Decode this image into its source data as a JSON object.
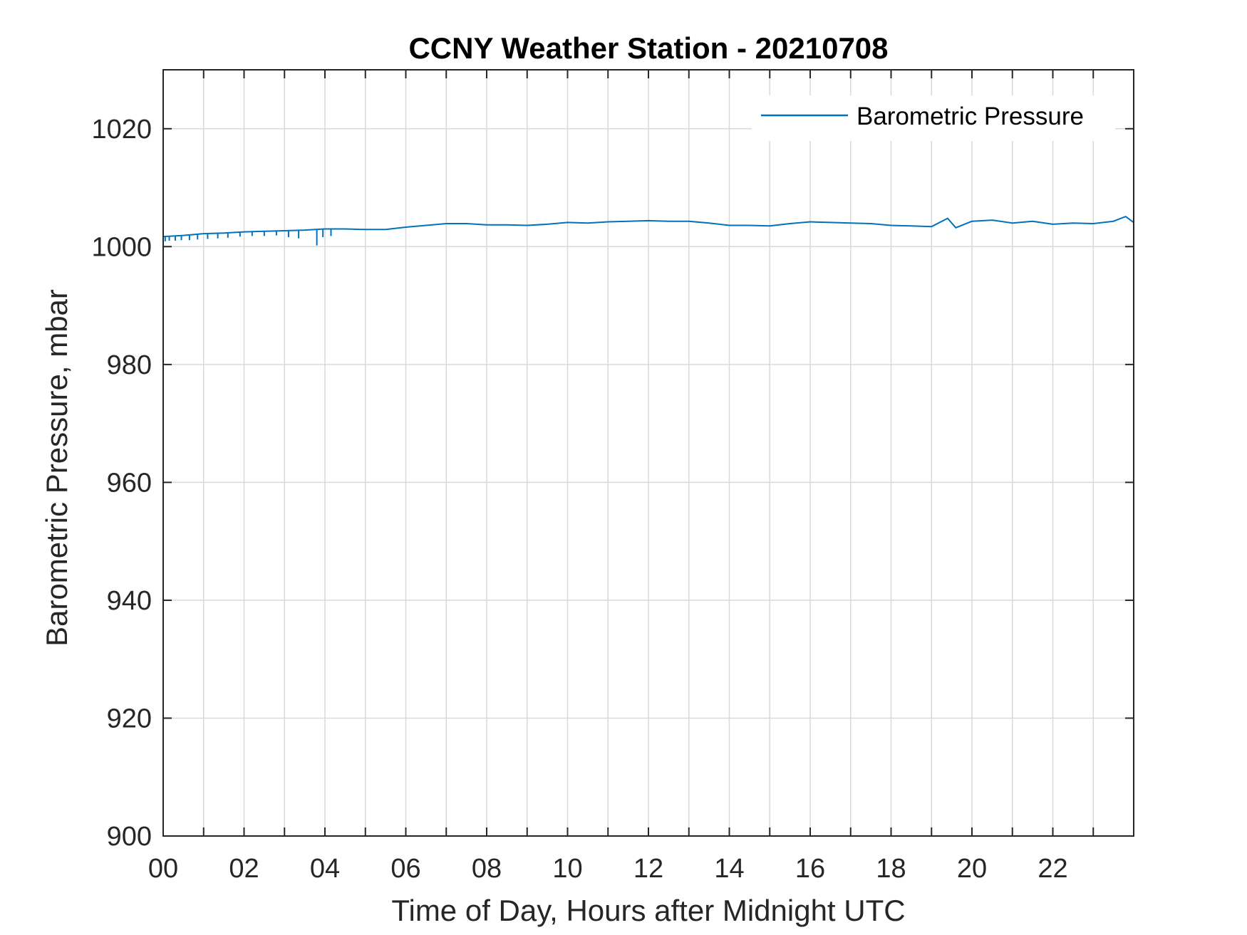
{
  "chart_data": {
    "type": "line",
    "title": "CCNY Weather Station - 20210708",
    "xlabel": "Time of Day, Hours after Midnight UTC",
    "ylabel": "Barometric Pressure, mbar",
    "xlim": [
      0,
      24
    ],
    "ylim": [
      900,
      1030
    ],
    "x_ticks": [
      0,
      2,
      4,
      6,
      8,
      10,
      12,
      14,
      16,
      18,
      20,
      22
    ],
    "x_tick_labels": [
      "00",
      "02",
      "04",
      "06",
      "08",
      "10",
      "12",
      "14",
      "16",
      "18",
      "20",
      "22"
    ],
    "x_minor_grid_step": 1,
    "y_ticks": [
      900,
      920,
      940,
      960,
      980,
      1000,
      1020
    ],
    "y_tick_labels": [
      "900",
      "920",
      "940",
      "960",
      "980",
      "1000",
      "1020"
    ],
    "grid": true,
    "legend_position": "top-right",
    "series": [
      {
        "name": "Barometric Pressure",
        "color": "#0072BD",
        "x": [
          0.0,
          0.5,
          1.0,
          1.5,
          2.0,
          2.5,
          3.0,
          3.5,
          4.0,
          4.5,
          5.0,
          5.5,
          6.0,
          6.5,
          7.0,
          7.5,
          8.0,
          8.5,
          9.0,
          9.5,
          10.0,
          10.5,
          11.0,
          11.5,
          12.0,
          12.5,
          13.0,
          13.5,
          14.0,
          14.5,
          15.0,
          15.5,
          16.0,
          16.5,
          17.0,
          17.5,
          18.0,
          18.5,
          19.0,
          19.4,
          19.6,
          20.0,
          20.5,
          21.0,
          21.5,
          22.0,
          22.5,
          23.0,
          23.5,
          23.8,
          24.0
        ],
        "values": [
          1001.7,
          1001.9,
          1002.2,
          1002.3,
          1002.5,
          1002.6,
          1002.7,
          1002.8,
          1003.0,
          1003.0,
          1002.9,
          1002.9,
          1003.3,
          1003.6,
          1003.9,
          1003.9,
          1003.7,
          1003.7,
          1003.6,
          1003.8,
          1004.1,
          1004.0,
          1004.2,
          1004.3,
          1004.4,
          1004.3,
          1004.3,
          1004.0,
          1003.6,
          1003.6,
          1003.5,
          1003.9,
          1004.2,
          1004.1,
          1004.0,
          1003.9,
          1003.6,
          1003.5,
          1003.4,
          1004.8,
          1003.2,
          1004.3,
          1004.5,
          1004.0,
          1004.3,
          1003.8,
          1004.0,
          1003.9,
          1004.3,
          1005.1,
          1004.1
        ]
      }
    ],
    "dropouts": [
      {
        "x": 0.05,
        "value": 1000.9
      },
      {
        "x": 0.15,
        "value": 1001.0
      },
      {
        "x": 0.3,
        "value": 1001.0
      },
      {
        "x": 0.45,
        "value": 1001.1
      },
      {
        "x": 0.65,
        "value": 1001.1
      },
      {
        "x": 0.85,
        "value": 1001.2
      },
      {
        "x": 1.1,
        "value": 1001.3
      },
      {
        "x": 1.35,
        "value": 1001.4
      },
      {
        "x": 1.6,
        "value": 1001.5
      },
      {
        "x": 1.9,
        "value": 1001.7
      },
      {
        "x": 2.2,
        "value": 1001.8
      },
      {
        "x": 2.5,
        "value": 1001.8
      },
      {
        "x": 2.8,
        "value": 1001.9
      },
      {
        "x": 3.1,
        "value": 1001.6
      },
      {
        "x": 3.35,
        "value": 1001.4
      },
      {
        "x": 3.8,
        "value": 1000.2
      },
      {
        "x": 3.95,
        "value": 1001.6
      },
      {
        "x": 4.15,
        "value": 1001.8
      }
    ]
  }
}
